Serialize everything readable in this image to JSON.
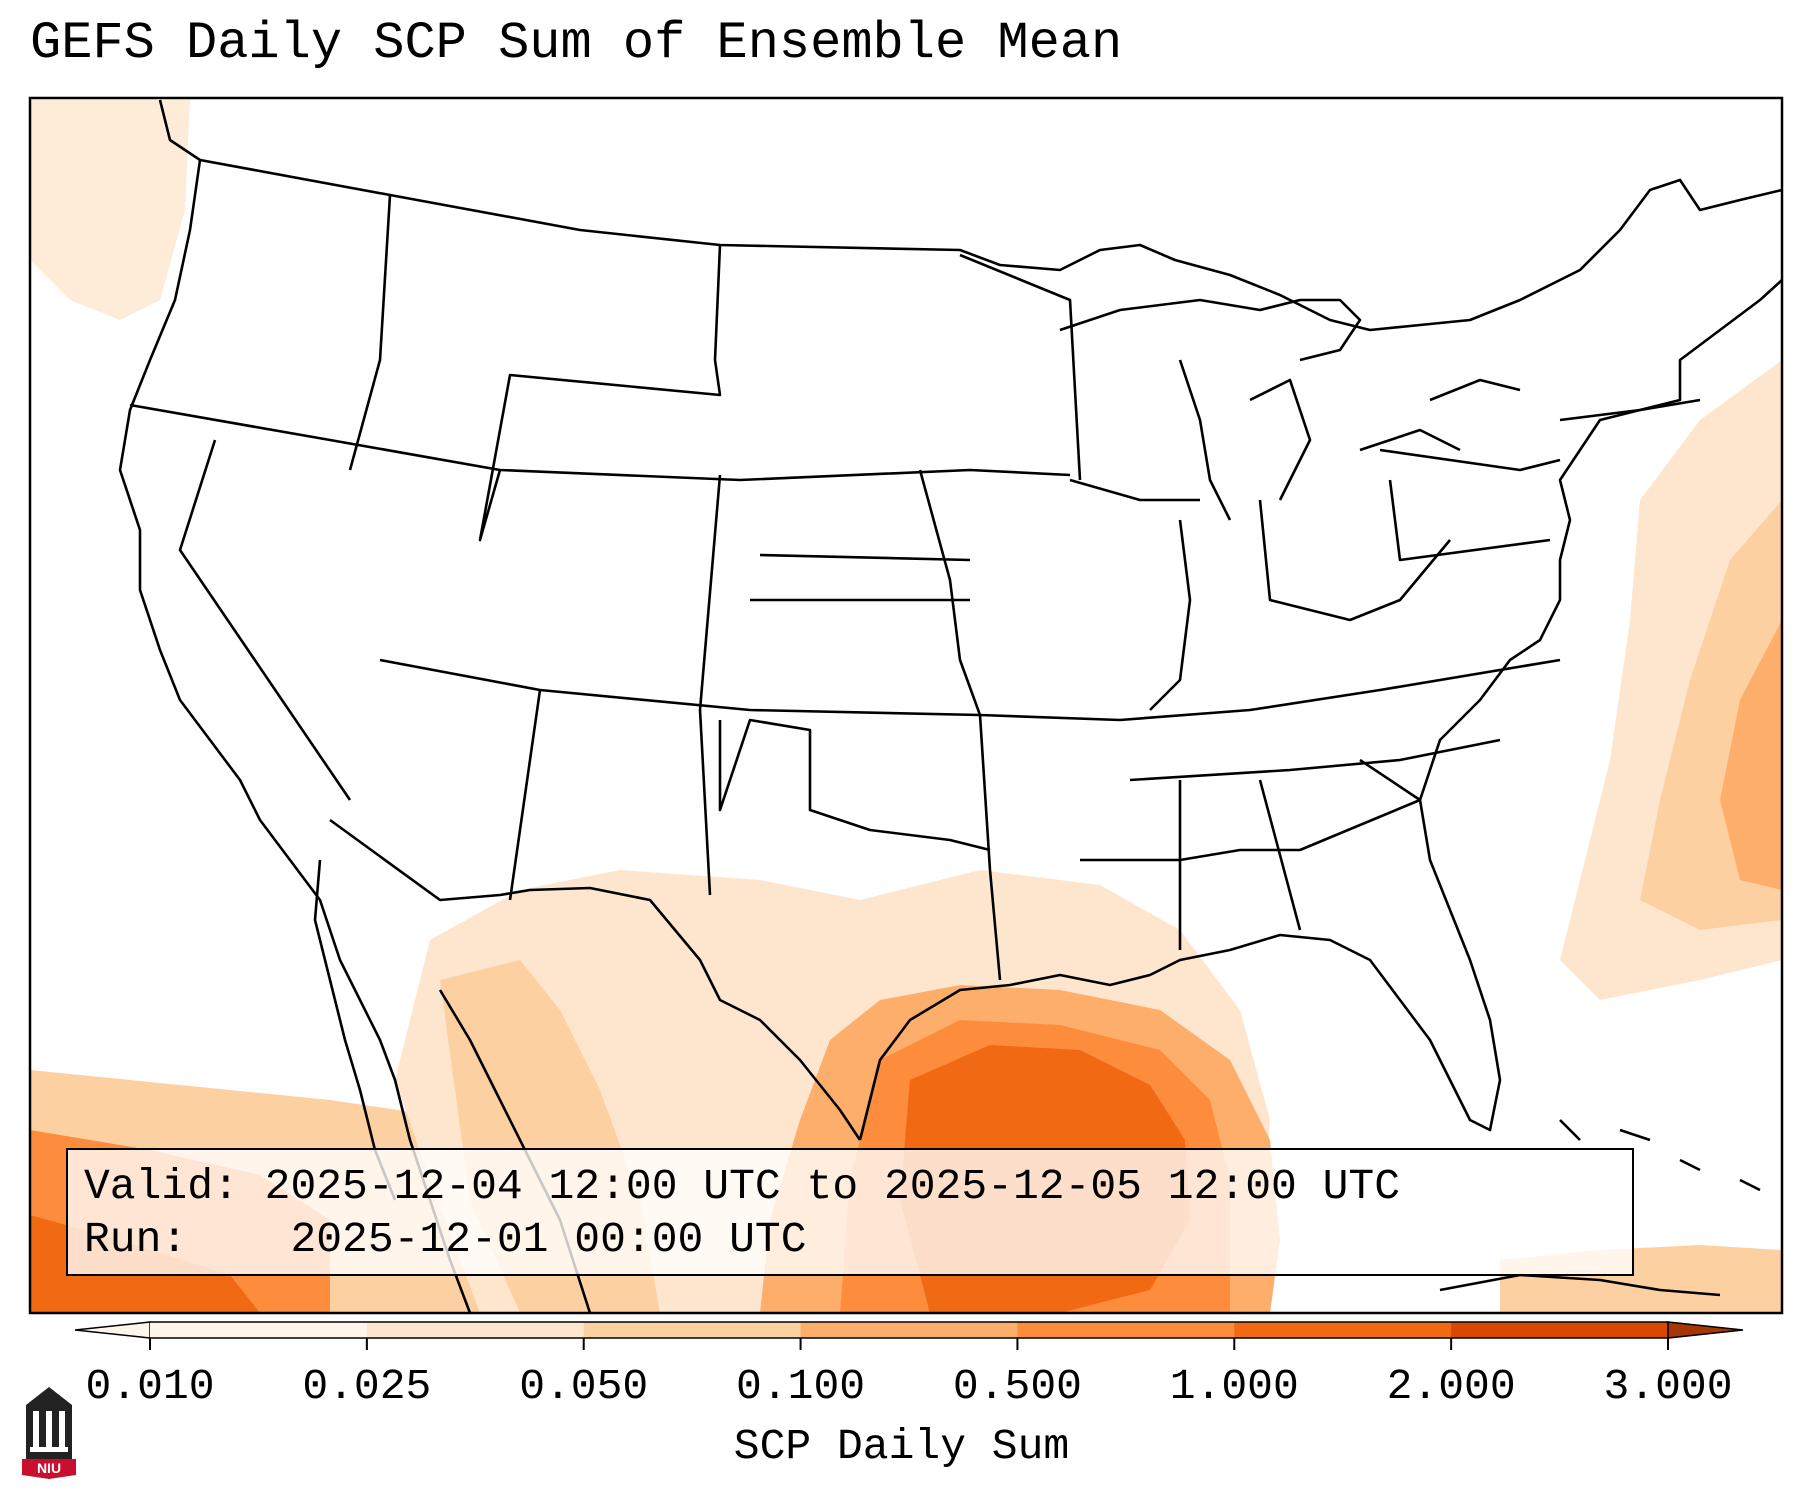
{
  "title": "GEFS Daily SCP Sum of Ensemble Mean",
  "info": {
    "valid_label": "Valid:",
    "valid_value": "2025-12-04 12:00 UTC to 2025-12-05 12:00 UTC",
    "run_label": "Run:",
    "run_value": "2025-12-01 00:00 UTC"
  },
  "colorbar": {
    "label": "SCP Daily Sum",
    "ticks": [
      "0.010",
      "0.025",
      "0.050",
      "0.100",
      "0.500",
      "1.000",
      "2.000",
      "3.000"
    ],
    "colors": [
      "#fff5eb",
      "#fee6ce",
      "#fdd0a2",
      "#fdae6b",
      "#fd8d3c",
      "#f16913",
      "#d94801",
      "#a63603"
    ],
    "extend": "both"
  },
  "logo": {
    "text": "NIU",
    "accent": "#c8102e"
  }
}
